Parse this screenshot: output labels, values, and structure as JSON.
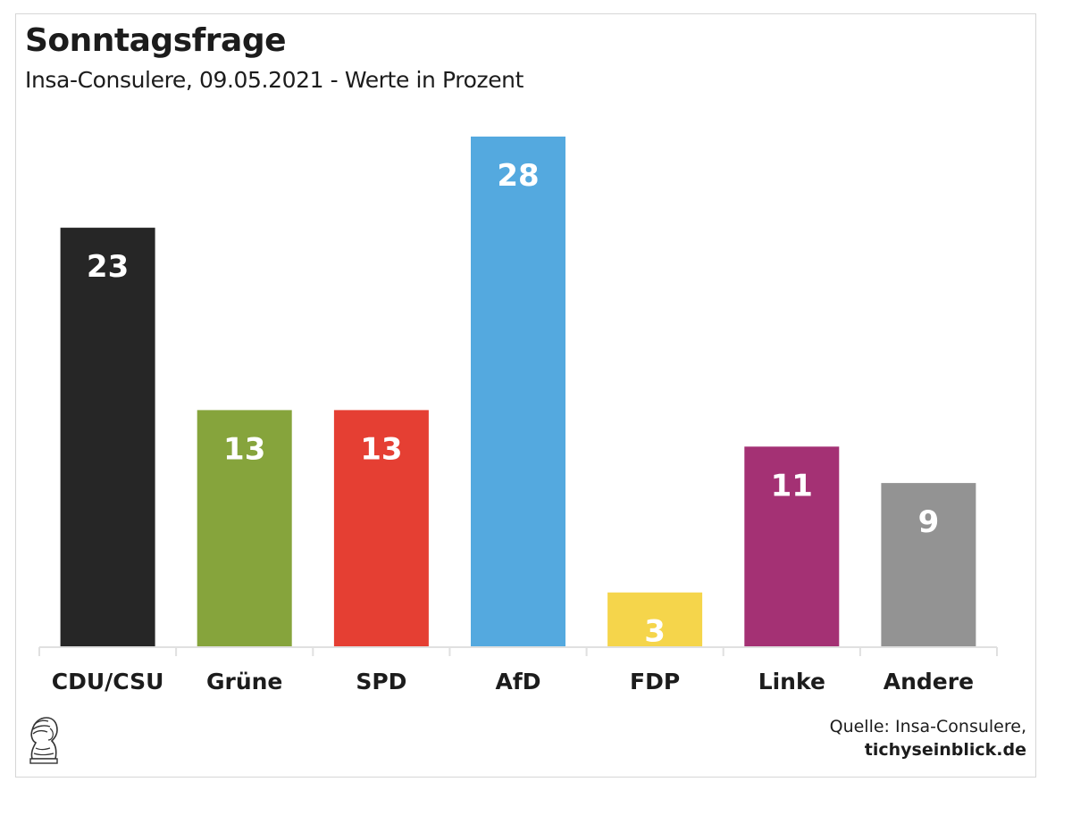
{
  "chart_data": {
    "type": "bar",
    "title": "Sonntagsfrage",
    "subtitle": "Insa-Consulere, 09.05.2021 - Werte in Prozent",
    "categories": [
      "CDU/CSU",
      "Grüne",
      "SPD",
      "AfD",
      "FDP",
      "Linke",
      "Andere"
    ],
    "values": [
      23,
      13,
      13,
      28,
      3,
      11,
      9
    ],
    "colors": [
      "#262626",
      "#86a43c",
      "#e53f33",
      "#54a9df",
      "#f5d54b",
      "#a43174",
      "#939393"
    ],
    "ylim": [
      0,
      28
    ],
    "grid": false,
    "legend": false,
    "xlabel": "",
    "ylabel": ""
  },
  "source": {
    "line1": "Quelle: Insa-Consulere,",
    "line2": "tichyseinblick.de"
  },
  "colors": {
    "text": "#1c1c1c",
    "axis": "#e0e0e0",
    "label_on_bar": "#ffffff"
  }
}
